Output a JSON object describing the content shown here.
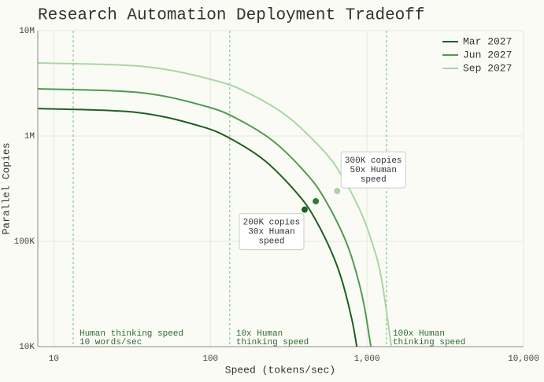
{
  "chart_data": {
    "type": "line",
    "title": "Research Automation Deployment Tradeoff",
    "x_label": "Speed (tokens/sec)",
    "y_label": "Parallel Copies",
    "log_x": true,
    "log_y": true,
    "grid": true,
    "legend": "upper right",
    "xlim": [
      7.9,
      10000
    ],
    "ylim": [
      10000,
      10000000
    ],
    "xticks": [
      10,
      100,
      {
        "value": 1000,
        "label": "1,000"
      },
      {
        "value": 10000,
        "label": "10,000"
      }
    ],
    "yticks": [
      {
        "value": 10000,
        "label": "10K"
      },
      {
        "value": 100000,
        "label": "100K"
      },
      {
        "value": 1000000,
        "label": "1M"
      },
      {
        "value": 10000000,
        "label": "10M"
      }
    ],
    "series": [
      {
        "name": "Mar 2027",
        "color": "#1f5f22",
        "x": [
          7.94,
          33.7,
          88.1,
          142.6,
          230.7,
          373.3,
          475,
          604,
          698,
          805,
          861
        ],
        "values": [
          1820000,
          1675000,
          1227000,
          899000,
          558000,
          265500,
          155300,
          74600,
          40800,
          17500,
          10000
        ]
      },
      {
        "name": "Jun 2027",
        "color": "#4f9a50",
        "x": [
          7.94,
          35.4,
          95.9,
          157.8,
          260,
          427.6,
          548,
          704.7,
          818,
          948,
          1059
        ],
        "values": [
          2805000,
          2582000,
          1892000,
          1387000,
          861000,
          409000,
          239300,
          115100,
          63000,
          26900,
          10000
        ]
      },
      {
        "name": "Sep 2027",
        "color": "#a9d6a3",
        "x": [
          7.94,
          38.4,
          109.6,
          185.4,
          313.3,
          529.7,
          688.7,
          895,
          1047,
          1227,
          1432
        ],
        "values": [
          4943000,
          4550000,
          3334000,
          2443000,
          1517000,
          721000,
          421700,
          202800,
          110900,
          47400,
          10000
        ]
      }
    ],
    "reference_lines": [
      {
        "x": 13.3,
        "color": "#6cc06c",
        "lines": [
          "Human thinking speed",
          "10 words/sec"
        ]
      },
      {
        "x": 133,
        "color": "#6cc06c",
        "lines": [
          "10x Human",
          "thinking speed"
        ]
      },
      {
        "x": 1333,
        "color": "#6cc06c",
        "lines": [
          "100x Human",
          "thinking speed"
        ]
      }
    ],
    "points": [
      {
        "x": 400,
        "y": 200000,
        "color": "#1f5f22",
        "lines": [
          "200K copies",
          "30x Human",
          "speed"
        ]
      },
      {
        "x": 471,
        "y": 240000,
        "color": "#2e7d32"
      },
      {
        "x": 645,
        "y": 300000,
        "color": "#a9d6a3",
        "lines": [
          "300K copies",
          "50x Human",
          "speed"
        ]
      }
    ]
  }
}
